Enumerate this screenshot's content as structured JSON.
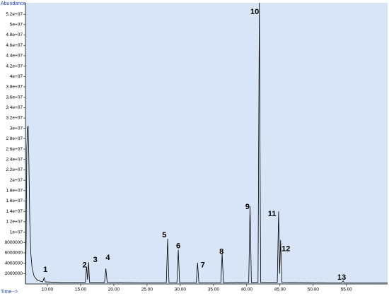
{
  "chart_data": {
    "type": "line",
    "ylabel": "Abundance",
    "xlabel": "Time-->",
    "color": "#000000",
    "background": "#d7e5f6",
    "xlim": [
      6.7,
      61.2
    ],
    "ylim": [
      0,
      54200000
    ],
    "xticks": [
      {
        "value": 10,
        "label": "10.00"
      },
      {
        "value": 15,
        "label": "15.00"
      },
      {
        "value": 20,
        "label": "20.00"
      },
      {
        "value": 25,
        "label": "25.00"
      },
      {
        "value": 30,
        "label": "30.00"
      },
      {
        "value": 35,
        "label": "35.00"
      },
      {
        "value": 40,
        "label": "40.00"
      },
      {
        "value": 45,
        "label": "45.00"
      },
      {
        "value": 50,
        "label": "50.00"
      },
      {
        "value": 55,
        "label": "55.00"
      }
    ],
    "yticks": [
      2000000,
      4000000,
      6000000,
      8000000,
      {
        "value": 10000000,
        "label": "1e+07"
      },
      {
        "value": 12000000,
        "label": "1.2e+07"
      },
      {
        "value": 14000000,
        "label": "1.4e+07"
      },
      {
        "value": 16000000,
        "label": "1.6e+07"
      },
      {
        "value": 18000000,
        "label": "1.8e+07"
      },
      {
        "value": 20000000,
        "label": "2e+07"
      },
      {
        "value": 22000000,
        "label": "2.2e+07"
      },
      {
        "value": 24000000,
        "label": "2.4e+07"
      },
      {
        "value": 26000000,
        "label": "2.6e+07"
      },
      {
        "value": 28000000,
        "label": "2.8e+07"
      },
      {
        "value": 30000000,
        "label": "3e+07"
      },
      {
        "value": 32000000,
        "label": "3.2e+07"
      },
      {
        "value": 34000000,
        "label": "3.4e+07"
      },
      {
        "value": 36000000,
        "label": "3.6e+07"
      },
      {
        "value": 38000000,
        "label": "3.8e+07"
      },
      {
        "value": 40000000,
        "label": "4e+07"
      },
      {
        "value": 42000000,
        "label": "4.2e+07"
      },
      {
        "value": 44000000,
        "label": "4.4e+07"
      },
      {
        "value": 46000000,
        "label": "4.6e+07"
      },
      {
        "value": 48000000,
        "label": "4.8e+07"
      },
      {
        "value": 50000000,
        "label": "5e+07"
      },
      {
        "value": 52000000,
        "label": "5.2e+07"
      }
    ],
    "x": [
      6.7,
      6.8,
      6.9,
      7.0,
      7.1,
      7.2,
      7.35,
      7.5,
      7.7,
      8.0,
      8.5,
      9.3,
      9.5,
      9.7,
      12.0,
      15.7,
      15.9,
      16.05,
      16.2,
      16.35,
      18.6,
      18.8,
      19.0,
      24.0,
      27.9,
      28.1,
      28.3,
      29.5,
      29.7,
      29.9,
      32.4,
      32.6,
      32.8,
      36.1,
      36.3,
      36.5,
      40.3,
      40.5,
      40.7,
      41.7,
      41.9,
      42.1,
      44.6,
      44.8,
      44.95,
      45.1,
      45.3,
      54.3,
      54.5,
      54.7,
      61.2
    ],
    "values": [
      0,
      8000000,
      26000000,
      30000000,
      30500000,
      25000000,
      12000000,
      6000000,
      3000000,
      1500000,
      700000,
      400000,
      1200000,
      400000,
      300000,
      300000,
      3300000,
      800000,
      4200000,
      300000,
      300000,
      3000000,
      300000,
      250000,
      250000,
      8700000,
      250000,
      250000,
      6600000,
      250000,
      250000,
      4100000,
      250000,
      250000,
      5800000,
      250000,
      300000,
      15000000,
      300000,
      300000,
      54200000,
      300000,
      300000,
      14000000,
      2000000,
      8500000,
      300000,
      200000,
      600000,
      200000,
      200000
    ],
    "annotations": [
      {
        "text": "1",
        "x": 9.7,
        "y": 2700000
      },
      {
        "text": "2",
        "x": 15.6,
        "y": 3600000
      },
      {
        "text": "3",
        "x": 17.2,
        "y": 4600000
      },
      {
        "text": "4",
        "x": 19.1,
        "y": 5000000
      },
      {
        "text": "5",
        "x": 27.6,
        "y": 9400000
      },
      {
        "text": "6",
        "x": 29.7,
        "y": 7300000
      },
      {
        "text": "7",
        "x": 33.4,
        "y": 3600000
      },
      {
        "text": "8",
        "x": 36.2,
        "y": 6200000
      },
      {
        "text": "9",
        "x": 40.1,
        "y": 14800000
      },
      {
        "text": "10",
        "x": 41.2,
        "y": 52400000
      },
      {
        "text": "11",
        "x": 43.8,
        "y": 13500000
      },
      {
        "text": "12",
        "x": 45.9,
        "y": 6700000
      },
      {
        "text": "13",
        "x": 54.3,
        "y": 1200000
      }
    ]
  }
}
